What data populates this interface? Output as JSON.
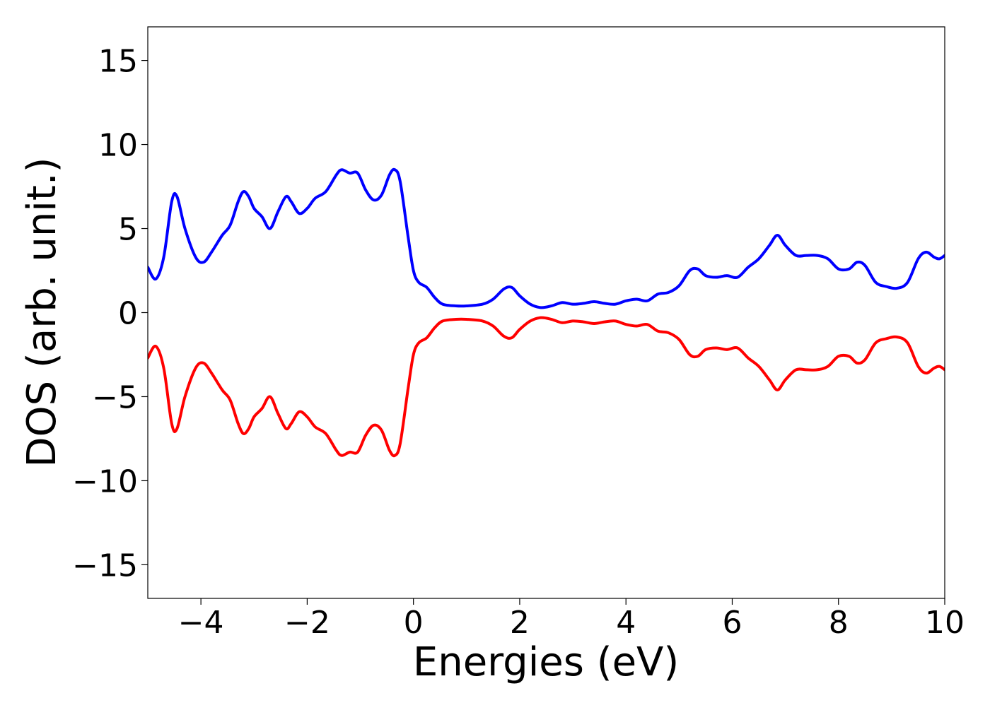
{
  "chart_data": {
    "type": "line",
    "title": "",
    "xlabel": "Energies (eV)",
    "ylabel": "DOS (arb. unit.)",
    "xlim": [
      -5,
      10
    ],
    "ylim": [
      -17,
      17
    ],
    "grid": false,
    "legend": "none",
    "xticks": [
      -4,
      -2,
      0,
      2,
      4,
      6,
      8,
      10
    ],
    "xtick_labels": [
      "−4",
      "−2",
      "0",
      "2",
      "4",
      "6",
      "8",
      "10"
    ],
    "yticks": [
      -15,
      -10,
      -5,
      0,
      5,
      10,
      15
    ],
    "ytick_labels": [
      "−15",
      "−10",
      "−5",
      "0",
      "5",
      "10",
      "15"
    ],
    "series": [
      {
        "color": "#0000ff",
        "points": [
          [
            -5.0,
            2.7
          ],
          [
            -4.85,
            2.0
          ],
          [
            -4.7,
            3.3
          ],
          [
            -4.55,
            6.6
          ],
          [
            -4.45,
            6.9
          ],
          [
            -4.3,
            5.0
          ],
          [
            -4.1,
            3.3
          ],
          [
            -3.95,
            3.0
          ],
          [
            -3.8,
            3.6
          ],
          [
            -3.6,
            4.6
          ],
          [
            -3.45,
            5.2
          ],
          [
            -3.3,
            6.6
          ],
          [
            -3.2,
            7.2
          ],
          [
            -3.1,
            6.9
          ],
          [
            -3.0,
            6.2
          ],
          [
            -2.85,
            5.7
          ],
          [
            -2.7,
            5.0
          ],
          [
            -2.55,
            6.0
          ],
          [
            -2.4,
            6.9
          ],
          [
            -2.3,
            6.6
          ],
          [
            -2.15,
            5.9
          ],
          [
            -2.0,
            6.2
          ],
          [
            -1.85,
            6.8
          ],
          [
            -1.65,
            7.2
          ],
          [
            -1.45,
            8.2
          ],
          [
            -1.35,
            8.5
          ],
          [
            -1.2,
            8.3
          ],
          [
            -1.05,
            8.3
          ],
          [
            -0.9,
            7.3
          ],
          [
            -0.75,
            6.7
          ],
          [
            -0.6,
            7.0
          ],
          [
            -0.45,
            8.2
          ],
          [
            -0.35,
            8.5
          ],
          [
            -0.25,
            7.8
          ],
          [
            -0.1,
            4.5
          ],
          [
            0.0,
            2.5
          ],
          [
            0.1,
            1.8
          ],
          [
            0.25,
            1.5
          ],
          [
            0.4,
            0.9
          ],
          [
            0.55,
            0.5
          ],
          [
            0.8,
            0.4
          ],
          [
            1.0,
            0.4
          ],
          [
            1.3,
            0.5
          ],
          [
            1.5,
            0.8
          ],
          [
            1.7,
            1.4
          ],
          [
            1.85,
            1.5
          ],
          [
            2.0,
            1.0
          ],
          [
            2.2,
            0.5
          ],
          [
            2.4,
            0.3
          ],
          [
            2.6,
            0.4
          ],
          [
            2.8,
            0.6
          ],
          [
            3.0,
            0.5
          ],
          [
            3.2,
            0.55
          ],
          [
            3.4,
            0.65
          ],
          [
            3.6,
            0.55
          ],
          [
            3.8,
            0.5
          ],
          [
            4.0,
            0.7
          ],
          [
            4.2,
            0.8
          ],
          [
            4.4,
            0.7
          ],
          [
            4.6,
            1.1
          ],
          [
            4.8,
            1.2
          ],
          [
            5.0,
            1.6
          ],
          [
            5.2,
            2.5
          ],
          [
            5.35,
            2.6
          ],
          [
            5.5,
            2.2
          ],
          [
            5.7,
            2.1
          ],
          [
            5.9,
            2.2
          ],
          [
            6.1,
            2.1
          ],
          [
            6.3,
            2.7
          ],
          [
            6.5,
            3.2
          ],
          [
            6.7,
            4.0
          ],
          [
            6.85,
            4.6
          ],
          [
            7.0,
            4.0
          ],
          [
            7.2,
            3.4
          ],
          [
            7.4,
            3.4
          ],
          [
            7.6,
            3.4
          ],
          [
            7.8,
            3.2
          ],
          [
            8.0,
            2.6
          ],
          [
            8.2,
            2.6
          ],
          [
            8.35,
            3.0
          ],
          [
            8.5,
            2.8
          ],
          [
            8.7,
            1.8
          ],
          [
            8.9,
            1.55
          ],
          [
            9.1,
            1.45
          ],
          [
            9.3,
            1.8
          ],
          [
            9.5,
            3.2
          ],
          [
            9.65,
            3.6
          ],
          [
            9.8,
            3.3
          ],
          [
            9.9,
            3.2
          ],
          [
            10.0,
            3.4
          ]
        ]
      },
      {
        "color": "#ff0000",
        "points": [
          [
            -5.0,
            -2.7
          ],
          [
            -4.85,
            -2.0
          ],
          [
            -4.7,
            -3.3
          ],
          [
            -4.55,
            -6.6
          ],
          [
            -4.45,
            -6.9
          ],
          [
            -4.3,
            -5.0
          ],
          [
            -4.1,
            -3.3
          ],
          [
            -3.95,
            -3.0
          ],
          [
            -3.8,
            -3.6
          ],
          [
            -3.6,
            -4.6
          ],
          [
            -3.45,
            -5.2
          ],
          [
            -3.3,
            -6.6
          ],
          [
            -3.2,
            -7.2
          ],
          [
            -3.1,
            -6.9
          ],
          [
            -3.0,
            -6.2
          ],
          [
            -2.85,
            -5.7
          ],
          [
            -2.7,
            -5.0
          ],
          [
            -2.55,
            -6.0
          ],
          [
            -2.4,
            -6.9
          ],
          [
            -2.3,
            -6.6
          ],
          [
            -2.15,
            -5.9
          ],
          [
            -2.0,
            -6.2
          ],
          [
            -1.85,
            -6.8
          ],
          [
            -1.65,
            -7.2
          ],
          [
            -1.45,
            -8.2
          ],
          [
            -1.35,
            -8.5
          ],
          [
            -1.2,
            -8.3
          ],
          [
            -1.05,
            -8.3
          ],
          [
            -0.9,
            -7.3
          ],
          [
            -0.75,
            -6.7
          ],
          [
            -0.6,
            -7.0
          ],
          [
            -0.45,
            -8.2
          ],
          [
            -0.35,
            -8.5
          ],
          [
            -0.25,
            -7.8
          ],
          [
            -0.1,
            -4.5
          ],
          [
            0.0,
            -2.5
          ],
          [
            0.1,
            -1.8
          ],
          [
            0.25,
            -1.5
          ],
          [
            0.4,
            -0.9
          ],
          [
            0.55,
            -0.5
          ],
          [
            0.8,
            -0.4
          ],
          [
            1.0,
            -0.4
          ],
          [
            1.3,
            -0.5
          ],
          [
            1.5,
            -0.8
          ],
          [
            1.7,
            -1.4
          ],
          [
            1.85,
            -1.5
          ],
          [
            2.0,
            -1.0
          ],
          [
            2.2,
            -0.5
          ],
          [
            2.4,
            -0.3
          ],
          [
            2.6,
            -0.4
          ],
          [
            2.8,
            -0.6
          ],
          [
            3.0,
            -0.5
          ],
          [
            3.2,
            -0.55
          ],
          [
            3.4,
            -0.65
          ],
          [
            3.6,
            -0.55
          ],
          [
            3.8,
            -0.5
          ],
          [
            4.0,
            -0.7
          ],
          [
            4.2,
            -0.8
          ],
          [
            4.4,
            -0.7
          ],
          [
            4.6,
            -1.1
          ],
          [
            4.8,
            -1.2
          ],
          [
            5.0,
            -1.6
          ],
          [
            5.2,
            -2.5
          ],
          [
            5.35,
            -2.6
          ],
          [
            5.5,
            -2.2
          ],
          [
            5.7,
            -2.1
          ],
          [
            5.9,
            -2.2
          ],
          [
            6.1,
            -2.1
          ],
          [
            6.3,
            -2.7
          ],
          [
            6.5,
            -3.2
          ],
          [
            6.7,
            -4.0
          ],
          [
            6.85,
            -4.6
          ],
          [
            7.0,
            -4.0
          ],
          [
            7.2,
            -3.4
          ],
          [
            7.4,
            -3.4
          ],
          [
            7.6,
            -3.4
          ],
          [
            7.8,
            -3.2
          ],
          [
            8.0,
            -2.6
          ],
          [
            8.2,
            -2.6
          ],
          [
            8.35,
            -3.0
          ],
          [
            8.5,
            -2.8
          ],
          [
            8.7,
            -1.8
          ],
          [
            8.9,
            -1.55
          ],
          [
            9.1,
            -1.45
          ],
          [
            9.3,
            -1.8
          ],
          [
            9.5,
            -3.2
          ],
          [
            9.65,
            -3.6
          ],
          [
            9.8,
            -3.3
          ],
          [
            9.9,
            -3.2
          ],
          [
            10.0,
            -3.4
          ]
        ]
      }
    ]
  }
}
